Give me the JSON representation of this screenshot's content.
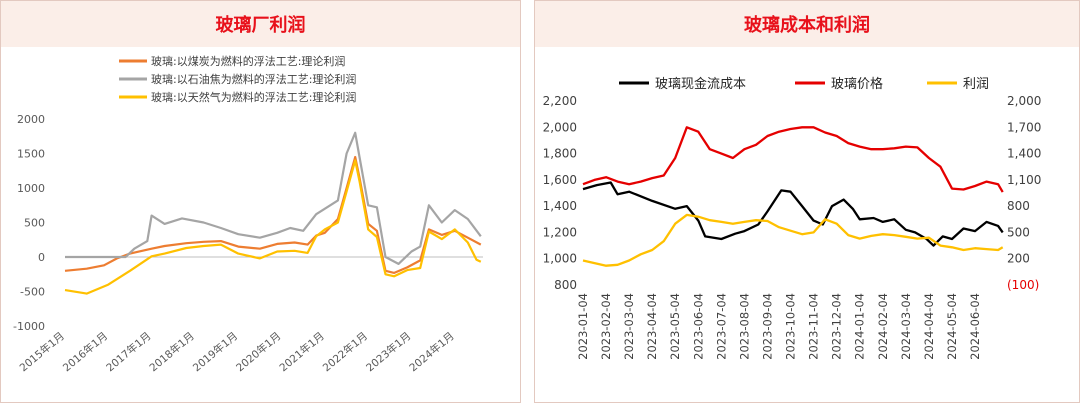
{
  "chart_data": [
    {
      "type": "line",
      "title": "玻璃厂利润",
      "ylim": [
        -1000,
        2000
      ],
      "yticks": [
        "2000",
        "1500",
        "1000",
        "500",
        "0",
        "-500",
        "-1000"
      ],
      "x_labels": [
        "2015年1月",
        "2016年1月",
        "2017年1月",
        "2018年1月",
        "2019年1月",
        "2020年1月",
        "2021年1月",
        "2022年1月",
        "2023年1月",
        "2024年1月"
      ],
      "x_range": [
        2015.0,
        2024.65
      ],
      "legend_position": "top",
      "grid": false,
      "series": [
        {
          "name": "玻璃:以煤炭为燃料的浮法工艺:理论利润",
          "color": "#ed7d31",
          "x": [
            2015.0,
            2015.5,
            2015.9,
            2016.2,
            2016.5,
            2017.0,
            2017.3,
            2017.8,
            2018.2,
            2018.6,
            2019.0,
            2019.5,
            2019.9,
            2020.3,
            2020.6,
            2020.8,
            2021.0,
            2021.3,
            2021.5,
            2021.7,
            2021.8,
            2022.0,
            2022.2,
            2022.4,
            2022.6,
            2022.9,
            2023.2,
            2023.4,
            2023.7,
            2024.0,
            2024.3,
            2024.6
          ],
          "y": [
            -200,
            -170,
            -120,
            -20,
            50,
            120,
            160,
            200,
            220,
            230,
            150,
            120,
            190,
            210,
            180,
            310,
            350,
            550,
            1000,
            1450,
            1150,
            480,
            380,
            -200,
            -230,
            -150,
            -50,
            400,
            320,
            380,
            280,
            180
          ]
        },
        {
          "name": "玻璃:以石油焦为燃料的浮法工艺:理论利润",
          "color": "#a5a5a5",
          "x": [
            2015.0,
            2015.5,
            2016.0,
            2016.4,
            2016.6,
            2016.9,
            2017.0,
            2017.3,
            2017.7,
            2018.2,
            2018.6,
            2019.0,
            2019.5,
            2019.9,
            2020.2,
            2020.5,
            2020.8,
            2021.0,
            2021.3,
            2021.5,
            2021.7,
            2021.8,
            2022.0,
            2022.2,
            2022.4,
            2022.7,
            2023.0,
            2023.2,
            2023.4,
            2023.7,
            2024.0,
            2024.3,
            2024.6
          ],
          "y": [
            0,
            0,
            0,
            0,
            120,
            230,
            600,
            480,
            560,
            500,
            420,
            330,
            280,
            350,
            420,
            380,
            620,
            700,
            820,
            1500,
            1800,
            1450,
            750,
            720,
            0,
            -100,
            80,
            150,
            750,
            500,
            680,
            550,
            300
          ]
        },
        {
          "name": "玻璃:以天然气为燃料的浮法工艺:理论利润",
          "color": "#ffc000",
          "x": [
            2015.0,
            2015.5,
            2016.0,
            2016.5,
            2017.0,
            2017.3,
            2017.8,
            2018.2,
            2018.6,
            2019.0,
            2019.5,
            2019.9,
            2020.3,
            2020.6,
            2020.8,
            2021.0,
            2021.3,
            2021.5,
            2021.7,
            2021.8,
            2022.0,
            2022.2,
            2022.4,
            2022.6,
            2022.9,
            2023.2,
            2023.4,
            2023.7,
            2024.0,
            2024.3,
            2024.5,
            2024.6
          ],
          "y": [
            -480,
            -530,
            -400,
            -200,
            10,
            50,
            130,
            160,
            180,
            50,
            -20,
            80,
            90,
            60,
            300,
            400,
            500,
            950,
            1400,
            1100,
            400,
            290,
            -250,
            -280,
            -190,
            -160,
            370,
            260,
            400,
            210,
            -40,
            -70
          ]
        }
      ]
    },
    {
      "type": "line",
      "title": "玻璃成本和利润",
      "ylim_left": [
        800,
        2200
      ],
      "ylim_right": [
        -100,
        2000
      ],
      "yticks_left": [
        "2,200",
        "2,000",
        "1,800",
        "1,600",
        "1,400",
        "1,200",
        "1,000",
        "800"
      ],
      "yticks_right": [
        "2,000",
        "1,700",
        "1,400",
        "1,100",
        "800",
        "500",
        "200",
        "(100)"
      ],
      "x_labels": [
        "2023-01-04",
        "2023-02-04",
        "2023-03-04",
        "2023-04-04",
        "2023-05-04",
        "2023-06-04",
        "2023-07-04",
        "2023-08-04",
        "2023-09-04",
        "2023-10-04",
        "2023-11-04",
        "2023-12-04",
        "2024-01-04",
        "2024-02-04",
        "2024-03-04",
        "2024-04-04",
        "2024-05-04",
        "2024-06-04"
      ],
      "x_range": [
        0,
        18.3
      ],
      "legend_position": "top",
      "grid": false,
      "series": [
        {
          "name": "玻璃现金流成本",
          "color": "#000000",
          "axis": "left",
          "x": [
            0,
            0.6,
            1.2,
            1.5,
            2.0,
            3.0,
            4.0,
            4.5,
            5.0,
            5.3,
            6.0,
            6.6,
            7.0,
            7.6,
            8.0,
            8.6,
            9.0,
            9.5,
            10.0,
            10.4,
            10.8,
            11.3,
            11.7,
            12.0,
            12.6,
            13.0,
            13.5,
            14.0,
            14.4,
            14.9,
            15.2,
            15.6,
            16.0,
            16.5,
            17.0,
            17.5,
            18.0,
            18.2
          ],
          "y": [
            1530,
            1560,
            1580,
            1490,
            1510,
            1440,
            1380,
            1400,
            1290,
            1170,
            1150,
            1190,
            1210,
            1260,
            1360,
            1520,
            1510,
            1400,
            1290,
            1260,
            1400,
            1450,
            1380,
            1300,
            1310,
            1280,
            1300,
            1220,
            1200,
            1150,
            1100,
            1170,
            1150,
            1230,
            1210,
            1280,
            1250,
            1200
          ]
        },
        {
          "name": "玻璃价格",
          "color": "#e50000",
          "axis": "right",
          "x": [
            0,
            0.5,
            1.0,
            1.5,
            2.0,
            2.5,
            3.0,
            3.5,
            4.0,
            4.5,
            5.0,
            5.5,
            6.0,
            6.5,
            7.0,
            7.5,
            8.0,
            8.5,
            9.0,
            9.5,
            10.0,
            10.5,
            11.0,
            11.5,
            12.0,
            12.5,
            13.0,
            13.5,
            14.0,
            14.5,
            15.0,
            15.5,
            16.0,
            16.5,
            17.0,
            17.5,
            18.0,
            18.2
          ],
          "y": [
            1050,
            1100,
            1130,
            1080,
            1050,
            1080,
            1120,
            1150,
            1350,
            1700,
            1650,
            1450,
            1400,
            1350,
            1450,
            1500,
            1600,
            1650,
            1680,
            1700,
            1700,
            1640,
            1600,
            1520,
            1480,
            1450,
            1450,
            1460,
            1480,
            1470,
            1350,
            1250,
            1000,
            990,
            1030,
            1080,
            1050,
            960
          ]
        },
        {
          "name": "利润",
          "color": "#ffc000",
          "axis": "right",
          "x": [
            0,
            0.5,
            1.0,
            1.5,
            2.0,
            2.5,
            3.0,
            3.5,
            4.0,
            4.5,
            5.0,
            5.5,
            6.0,
            6.5,
            7.0,
            7.5,
            8.0,
            8.5,
            9.0,
            9.5,
            10.0,
            10.5,
            11.0,
            11.5,
            12.0,
            12.5,
            13.0,
            13.5,
            14.0,
            14.5,
            15.0,
            15.5,
            16.0,
            16.5,
            17.0,
            17.5,
            18.0,
            18.2
          ],
          "y": [
            180,
            150,
            120,
            130,
            180,
            250,
            300,
            400,
            600,
            700,
            680,
            640,
            620,
            600,
            620,
            640,
            630,
            560,
            520,
            480,
            500,
            650,
            600,
            470,
            430,
            460,
            480,
            470,
            450,
            430,
            440,
            350,
            330,
            300,
            320,
            310,
            300,
            330
          ]
        }
      ]
    }
  ]
}
